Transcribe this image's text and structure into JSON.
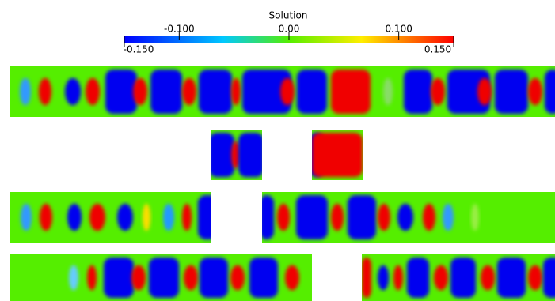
{
  "chart_data": {
    "type": "colorbar",
    "title": "Solution",
    "clim": [
      -0.15,
      0.15
    ],
    "ticks": [
      {
        "value": -0.15,
        "label": "-0.150"
      },
      {
        "value": -0.1,
        "label": "-0.100"
      },
      {
        "value": 0,
        "label": "0.00"
      },
      {
        "value": 0.1,
        "label": "0.100"
      },
      {
        "value": 0.15,
        "label": "0.150"
      }
    ]
  }
}
